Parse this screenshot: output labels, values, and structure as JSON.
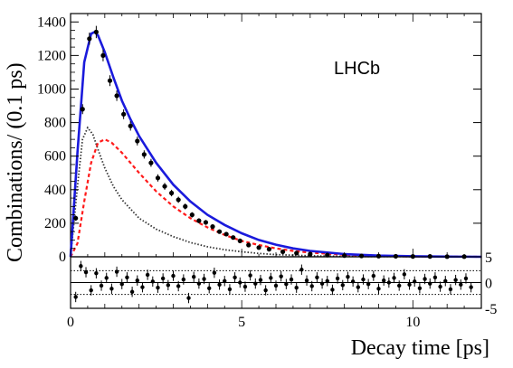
{
  "chart_data": {
    "type": "scatter",
    "experiment_label": "LHCb",
    "xlabel": "Decay time [ps]",
    "ylabel": "Combinations/ (0.1 ps)",
    "xlim": [
      0,
      12
    ],
    "ylim": [
      0,
      1450
    ],
    "x_ticks": [
      "0",
      "5",
      "10"
    ],
    "y_ticks": [
      "0",
      "200",
      "400",
      "600",
      "800",
      "1000",
      "1200",
      "1400"
    ],
    "pull_ylim": [
      -5,
      5
    ],
    "pull_ticks": [
      "5",
      "0",
      "-5"
    ],
    "legend": "none",
    "grid": false,
    "colors": {
      "total_fit": "#1a1adc",
      "component_red": "#ff1a1a",
      "component_black": "#333333",
      "points": "#000000"
    },
    "series": [
      {
        "style": "points-with-error-bars",
        "x": [
          0.15,
          0.35,
          0.55,
          0.75,
          0.95,
          1.15,
          1.35,
          1.55,
          1.75,
          1.95,
          2.15,
          2.35,
          2.55,
          2.75,
          2.95,
          3.15,
          3.35,
          3.55,
          3.75,
          3.95,
          4.15,
          4.35,
          4.55,
          4.75,
          4.95,
          5.2,
          5.5,
          5.8,
          6.2,
          6.6,
          7.0,
          7.5,
          8.0,
          8.5,
          9.0,
          9.5,
          10.0,
          10.5,
          11.0,
          11.5
        ],
        "y": [
          230,
          880,
          1300,
          1340,
          1200,
          1050,
          960,
          850,
          780,
          690,
          610,
          560,
          470,
          420,
          380,
          340,
          300,
          250,
          215,
          205,
          180,
          150,
          135,
          115,
          95,
          70,
          55,
          45,
          30,
          22,
          16,
          10,
          7,
          5,
          4,
          3,
          2,
          2,
          1,
          1
        ]
      },
      {
        "style": "solid-line",
        "x": [
          0,
          0.2,
          0.4,
          0.6,
          0.7,
          0.8,
          1.0,
          1.25,
          1.5,
          1.75,
          2.0,
          2.5,
          3.0,
          3.5,
          4.0,
          4.5,
          5.0,
          5.5,
          6.0,
          6.5,
          7.0,
          8.0,
          9.0,
          10.0,
          11.0,
          12.0
        ],
        "y": [
          0,
          620,
          1160,
          1330,
          1340,
          1320,
          1220,
          1070,
          930,
          820,
          720,
          560,
          430,
          330,
          250,
          190,
          140,
          100,
          72,
          50,
          35,
          16,
          7,
          3,
          1,
          0
        ]
      },
      {
        "style": "dashed-line",
        "x": [
          0,
          0.2,
          0.4,
          0.6,
          0.8,
          1.0,
          1.2,
          1.5,
          2.0,
          2.5,
          3.0,
          3.5,
          4.0,
          4.5,
          5.0,
          5.5,
          6.0,
          6.5,
          7.0,
          8.0,
          9.0,
          10.0,
          12.0
        ],
        "y": [
          0,
          80,
          330,
          560,
          680,
          700,
          680,
          620,
          500,
          390,
          300,
          230,
          175,
          130,
          95,
          70,
          50,
          35,
          25,
          12,
          5,
          2,
          0
        ]
      },
      {
        "style": "dotted-line",
        "x": [
          0,
          0.2,
          0.35,
          0.5,
          0.65,
          0.8,
          1.0,
          1.25,
          1.5,
          2.0,
          2.5,
          3.0,
          3.5,
          4.0,
          4.5,
          5.0,
          5.5,
          6.0,
          7.0,
          8.0,
          12.0
        ],
        "y": [
          0,
          420,
          700,
          770,
          730,
          640,
          530,
          420,
          340,
          230,
          165,
          120,
          85,
          60,
          42,
          30,
          20,
          13,
          6,
          2,
          0
        ]
      }
    ],
    "pulls": {
      "x": [
        0.15,
        0.3,
        0.45,
        0.6,
        0.75,
        0.9,
        1.05,
        1.2,
        1.35,
        1.5,
        1.65,
        1.8,
        1.95,
        2.1,
        2.25,
        2.4,
        2.55,
        2.7,
        2.85,
        3.0,
        3.15,
        3.3,
        3.45,
        3.6,
        3.75,
        3.9,
        4.05,
        4.2,
        4.35,
        4.5,
        4.65,
        4.8,
        4.95,
        5.1,
        5.25,
        5.4,
        5.55,
        5.7,
        5.85,
        6.0,
        6.15,
        6.3,
        6.45,
        6.6,
        6.75,
        6.9,
        7.05,
        7.2,
        7.35,
        7.5,
        7.65,
        7.8,
        7.95,
        8.1,
        8.25,
        8.4,
        8.55,
        8.7,
        8.85,
        9.0,
        9.15,
        9.3,
        9.45,
        9.6,
        9.75,
        9.9,
        10.05,
        10.2,
        10.35,
        10.5,
        10.65,
        10.8,
        10.95,
        11.1,
        11.25,
        11.4,
        11.55,
        11.7
      ],
      "y": [
        -2.8,
        3.2,
        2.0,
        -1.5,
        1.8,
        -0.6,
        0.9,
        -1.2,
        2.1,
        -0.3,
        1.0,
        -1.8,
        0.4,
        -0.9,
        1.5,
        0.2,
        -1.0,
        0.8,
        -0.5,
        1.3,
        -0.7,
        0.6,
        -3.0,
        1.1,
        -0.2,
        0.7,
        -1.1,
        1.9,
        -0.4,
        0.3,
        -1.3,
        1.0,
        0.0,
        -0.8,
        1.4,
        -0.2,
        0.5,
        -1.5,
        0.9,
        -0.6,
        1.2,
        -0.3,
        0.6,
        -1.0,
        2.5,
        0.4,
        -0.7,
        1.0,
        -0.2,
        0.3,
        -1.4,
        0.8,
        -0.5,
        1.1,
        0.2,
        -0.9,
        0.6,
        -0.3,
        1.3,
        -1.2,
        0.4,
        0.0,
        0.9,
        -0.6,
        1.6,
        -0.4,
        0.2,
        -1.1,
        0.7,
        -0.2,
        1.0,
        -0.8,
        0.3,
        -1.3,
        0.5,
        -0.4,
        0.8,
        -0.9
      ]
    }
  }
}
